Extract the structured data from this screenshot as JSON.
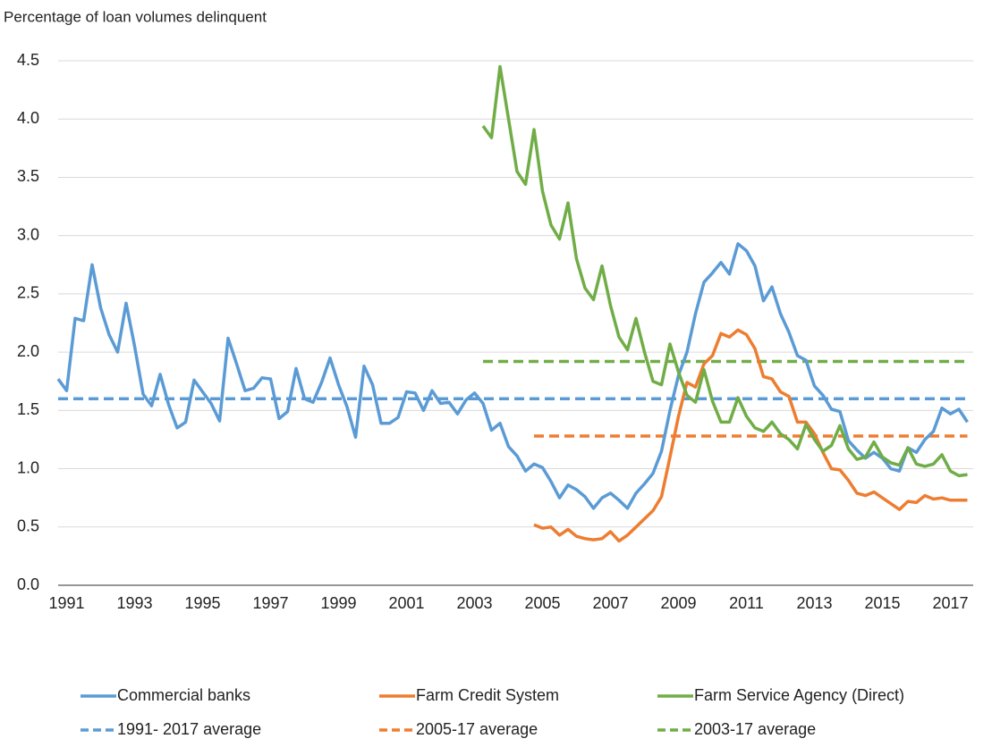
{
  "chart_data": {
    "type": "line",
    "title": "Percentage of loan volumes delinquent",
    "categories": [
      null,
      "1991",
      null,
      null,
      null,
      null,
      null,
      null,
      null,
      "1993",
      null,
      null,
      null,
      null,
      null,
      null,
      null,
      "1995",
      null,
      null,
      null,
      null,
      null,
      null,
      null,
      "1997",
      null,
      null,
      null,
      null,
      null,
      null,
      null,
      "1999",
      null,
      null,
      null,
      null,
      null,
      null,
      null,
      "2001",
      null,
      null,
      null,
      null,
      null,
      null,
      null,
      "2003",
      null,
      null,
      null,
      null,
      null,
      null,
      null,
      "2005",
      null,
      null,
      null,
      null,
      null,
      null,
      null,
      "2007",
      null,
      null,
      null,
      null,
      null,
      null,
      null,
      "2009",
      null,
      null,
      null,
      null,
      null,
      null,
      null,
      "2011",
      null,
      null,
      null,
      null,
      null,
      null,
      null,
      "2013",
      null,
      null,
      null,
      null,
      null,
      null,
      null,
      "2015",
      null,
      null,
      null,
      null,
      null,
      null,
      null,
      "2017",
      null,
      null
    ],
    "ylim": [
      0,
      4.5
    ],
    "yticks": [
      {
        "value": 0,
        "label": "0.0"
      },
      {
        "value": 0.5,
        "label": "0.5"
      },
      {
        "value": 1,
        "label": "1.0"
      },
      {
        "value": 1.5,
        "label": "1.5"
      },
      {
        "value": 2,
        "label": "2.0"
      },
      {
        "value": 2.5,
        "label": "2.5"
      },
      {
        "value": 3,
        "label": "3.0"
      },
      {
        "value": 3.5,
        "label": "3.5"
      },
      {
        "value": 4,
        "label": "4.0"
      },
      {
        "value": 4.5,
        "label": "4.5"
      }
    ],
    "grid": true,
    "legend": "bottom",
    "series": [
      {
        "name": "Commercial banks",
        "color": "#5b9bd5",
        "dashed": false,
        "values": [
          1.77,
          1.67,
          2.29,
          2.27,
          2.75,
          2.38,
          2.15,
          2.0,
          2.42,
          2.05,
          1.64,
          1.54,
          1.81,
          1.55,
          1.35,
          1.4,
          1.76,
          1.66,
          1.56,
          1.41,
          2.12,
          1.9,
          1.67,
          1.69,
          1.78,
          1.77,
          1.43,
          1.49,
          1.86,
          1.6,
          1.57,
          1.74,
          1.95,
          1.72,
          1.53,
          1.27,
          1.88,
          1.72,
          1.39,
          1.39,
          1.44,
          1.66,
          1.65,
          1.5,
          1.67,
          1.56,
          1.57,
          1.47,
          1.59,
          1.65,
          1.56,
          1.33,
          1.39,
          1.19,
          1.11,
          0.98,
          1.04,
          1.01,
          0.89,
          0.75,
          0.86,
          0.82,
          0.76,
          0.66,
          0.75,
          0.79,
          0.73,
          0.66,
          0.79,
          0.87,
          0.96,
          1.15,
          1.5,
          1.8,
          2.0,
          2.33,
          2.6,
          2.68,
          2.77,
          2.67,
          2.93,
          2.87,
          2.74,
          2.44,
          2.56,
          2.33,
          2.17,
          1.97,
          1.93,
          1.71,
          1.63,
          1.51,
          1.49,
          1.24,
          1.16,
          1.09,
          1.14,
          1.09,
          1.0,
          0.98,
          1.18,
          1.14,
          1.25,
          1.32,
          1.52,
          1.47,
          1.51,
          1.4
        ]
      },
      {
        "name": "Farm Credit System",
        "color": "#ed7d31",
        "dashed": false,
        "values": [
          null,
          null,
          null,
          null,
          null,
          null,
          null,
          null,
          null,
          null,
          null,
          null,
          null,
          null,
          null,
          null,
          null,
          null,
          null,
          null,
          null,
          null,
          null,
          null,
          null,
          null,
          null,
          null,
          null,
          null,
          null,
          null,
          null,
          null,
          null,
          null,
          null,
          null,
          null,
          null,
          null,
          null,
          null,
          null,
          null,
          null,
          null,
          null,
          null,
          null,
          null,
          null,
          null,
          null,
          null,
          null,
          0.52,
          0.49,
          0.5,
          0.43,
          0.48,
          0.42,
          0.4,
          0.39,
          0.4,
          0.46,
          0.38,
          0.43,
          0.5,
          0.57,
          0.64,
          0.76,
          1.1,
          1.45,
          1.74,
          1.7,
          1.9,
          1.97,
          2.16,
          2.13,
          2.19,
          2.15,
          2.03,
          1.79,
          1.77,
          1.66,
          1.62,
          1.4,
          1.4,
          1.3,
          1.14,
          1.0,
          0.99,
          0.9,
          0.79,
          0.77,
          0.8,
          0.75,
          0.7,
          0.65,
          0.72,
          0.71,
          0.77,
          0.74,
          0.75,
          0.73,
          0.73,
          0.73
        ]
      },
      {
        "name": "Farm Service Agency (Direct)",
        "color": "#70ad47",
        "dashed": false,
        "values": [
          null,
          null,
          null,
          null,
          null,
          null,
          null,
          null,
          null,
          null,
          null,
          null,
          null,
          null,
          null,
          null,
          null,
          null,
          null,
          null,
          null,
          null,
          null,
          null,
          null,
          null,
          null,
          null,
          null,
          null,
          null,
          null,
          null,
          null,
          null,
          null,
          null,
          null,
          null,
          null,
          null,
          null,
          null,
          null,
          null,
          null,
          null,
          null,
          null,
          null,
          3.94,
          3.84,
          4.45,
          4.0,
          3.55,
          3.44,
          3.91,
          3.38,
          3.09,
          2.97,
          3.28,
          2.8,
          2.55,
          2.45,
          2.74,
          2.4,
          2.13,
          2.02,
          2.29,
          2.0,
          1.75,
          1.72,
          2.07,
          1.83,
          1.63,
          1.57,
          1.85,
          1.58,
          1.4,
          1.4,
          1.61,
          1.45,
          1.35,
          1.32,
          1.4,
          1.3,
          1.25,
          1.17,
          1.38,
          1.25,
          1.15,
          1.2,
          1.37,
          1.17,
          1.08,
          1.1,
          1.23,
          1.1,
          1.05,
          1.03,
          1.18,
          1.04,
          1.02,
          1.04,
          1.12,
          0.98,
          0.94,
          0.95
        ]
      },
      {
        "name": "1991- 2017 average",
        "color": "#5b9bd5",
        "dashed": true,
        "values": [
          1.6,
          1.6,
          1.6,
          1.6,
          1.6,
          1.6,
          1.6,
          1.6,
          1.6,
          1.6,
          1.6,
          1.6,
          1.6,
          1.6,
          1.6,
          1.6,
          1.6,
          1.6,
          1.6,
          1.6,
          1.6,
          1.6,
          1.6,
          1.6,
          1.6,
          1.6,
          1.6,
          1.6,
          1.6,
          1.6,
          1.6,
          1.6,
          1.6,
          1.6,
          1.6,
          1.6,
          1.6,
          1.6,
          1.6,
          1.6,
          1.6,
          1.6,
          1.6,
          1.6,
          1.6,
          1.6,
          1.6,
          1.6,
          1.6,
          1.6,
          1.6,
          1.6,
          1.6,
          1.6,
          1.6,
          1.6,
          1.6,
          1.6,
          1.6,
          1.6,
          1.6,
          1.6,
          1.6,
          1.6,
          1.6,
          1.6,
          1.6,
          1.6,
          1.6,
          1.6,
          1.6,
          1.6,
          1.6,
          1.6,
          1.6,
          1.6,
          1.6,
          1.6,
          1.6,
          1.6,
          1.6,
          1.6,
          1.6,
          1.6,
          1.6,
          1.6,
          1.6,
          1.6,
          1.6,
          1.6,
          1.6,
          1.6,
          1.6,
          1.6,
          1.6,
          1.6,
          1.6,
          1.6,
          1.6,
          1.6,
          1.6,
          1.6,
          1.6,
          1.6,
          1.6,
          1.6,
          1.6,
          1.6
        ]
      },
      {
        "name": "2005-17 average",
        "color": "#ed7d31",
        "dashed": true,
        "values": [
          null,
          null,
          null,
          null,
          null,
          null,
          null,
          null,
          null,
          null,
          null,
          null,
          null,
          null,
          null,
          null,
          null,
          null,
          null,
          null,
          null,
          null,
          null,
          null,
          null,
          null,
          null,
          null,
          null,
          null,
          null,
          null,
          null,
          null,
          null,
          null,
          null,
          null,
          null,
          null,
          null,
          null,
          null,
          null,
          null,
          null,
          null,
          null,
          null,
          null,
          null,
          null,
          null,
          null,
          null,
          null,
          1.28,
          1.28,
          1.28,
          1.28,
          1.28,
          1.28,
          1.28,
          1.28,
          1.28,
          1.28,
          1.28,
          1.28,
          1.28,
          1.28,
          1.28,
          1.28,
          1.28,
          1.28,
          1.28,
          1.28,
          1.28,
          1.28,
          1.28,
          1.28,
          1.28,
          1.28,
          1.28,
          1.28,
          1.28,
          1.28,
          1.28,
          1.28,
          1.28,
          1.28,
          1.28,
          1.28,
          1.28,
          1.28,
          1.28,
          1.28,
          1.28,
          1.28,
          1.28,
          1.28,
          1.28,
          1.28,
          1.28,
          1.28,
          1.28,
          1.28,
          1.28,
          1.28
        ]
      },
      {
        "name": "2003-17 average",
        "color": "#70ad47",
        "dashed": true,
        "values": [
          null,
          null,
          null,
          null,
          null,
          null,
          null,
          null,
          null,
          null,
          null,
          null,
          null,
          null,
          null,
          null,
          null,
          null,
          null,
          null,
          null,
          null,
          null,
          null,
          null,
          null,
          null,
          null,
          null,
          null,
          null,
          null,
          null,
          null,
          null,
          null,
          null,
          null,
          null,
          null,
          null,
          null,
          null,
          null,
          null,
          null,
          null,
          null,
          null,
          null,
          1.92,
          1.92,
          1.92,
          1.92,
          1.92,
          1.92,
          1.92,
          1.92,
          1.92,
          1.92,
          1.92,
          1.92,
          1.92,
          1.92,
          1.92,
          1.92,
          1.92,
          1.92,
          1.92,
          1.92,
          1.92,
          1.92,
          1.92,
          1.92,
          1.92,
          1.92,
          1.92,
          1.92,
          1.92,
          1.92,
          1.92,
          1.92,
          1.92,
          1.92,
          1.92,
          1.92,
          1.92,
          1.92,
          1.92,
          1.92,
          1.92,
          1.92,
          1.92,
          1.92,
          1.92,
          1.92,
          1.92,
          1.92,
          1.92,
          1.92,
          1.92,
          1.92,
          1.92,
          1.92,
          1.92,
          1.92,
          1.92,
          1.92
        ]
      }
    ]
  }
}
